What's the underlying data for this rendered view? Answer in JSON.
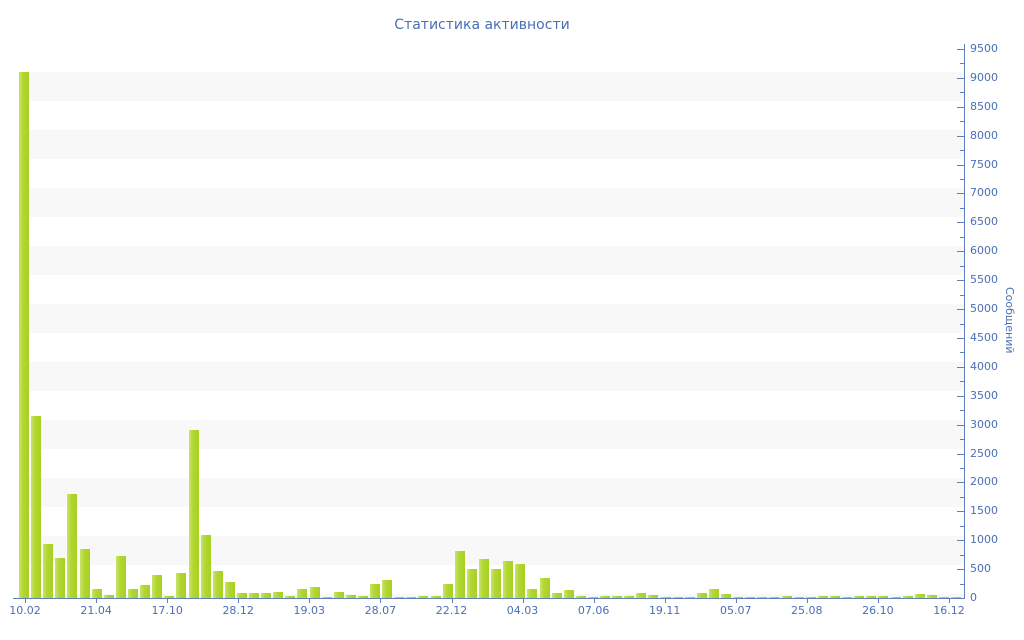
{
  "title": "Статистика активности",
  "y_axis": {
    "title": "Сообщений",
    "min": 0,
    "max": 9500,
    "major_step": 500,
    "minor_step": 250,
    "tick_labels": [
      "0",
      "500",
      "1000",
      "1500",
      "2000",
      "2500",
      "3000",
      "3500",
      "4000",
      "4500",
      "5000",
      "5500",
      "6000",
      "6500",
      "7000",
      "7500",
      "8000",
      "8500",
      "9000",
      "9500"
    ]
  },
  "x_axis": {
    "tick_labels": [
      "10.02",
      "21.04",
      "17.10",
      "28.12",
      "19.03",
      "28.07",
      "22.12",
      "04.03",
      "07.06",
      "19.11",
      "05.07",
      "25.08",
      "26.10",
      "16.12"
    ]
  },
  "colors": {
    "bar": "#b2d733",
    "bar_highlight": "#c8e46a",
    "text": "#4a6fb5",
    "axis": "#6080bd",
    "stripe": "#f8f8f8",
    "background": "#ffffff"
  },
  "chart_data": {
    "type": "bar",
    "title": "Статистика активности",
    "ylabel": "Сообщений",
    "ylim": [
      0,
      9500
    ],
    "grid": "horizontal-stripes",
    "legend": "none",
    "x_tick_labels": [
      "10.02",
      "21.04",
      "17.10",
      "28.12",
      "19.03",
      "28.07",
      "22.12",
      "04.03",
      "07.06",
      "19.11",
      "05.07",
      "25.08",
      "26.10",
      "16.12"
    ],
    "bars_per_labeled_tick": 6,
    "values": [
      9100,
      3150,
      930,
      700,
      1800,
      850,
      160,
      60,
      720,
      160,
      225,
      400,
      30,
      440,
      2900,
      1090,
      470,
      270,
      80,
      90,
      80,
      110,
      35,
      150,
      195,
      25,
      110,
      50,
      35,
      240,
      310,
      25,
      12,
      30,
      30,
      250,
      810,
      500,
      680,
      510,
      645,
      590,
      150,
      350,
      92,
      135,
      35,
      25,
      30,
      30,
      40,
      80,
      60,
      12,
      6,
      17,
      95,
      155,
      70,
      25,
      17,
      25,
      25,
      30,
      17,
      12,
      35,
      30,
      17,
      35,
      40,
      30,
      25,
      33,
      70,
      58,
      17,
      17
    ]
  }
}
